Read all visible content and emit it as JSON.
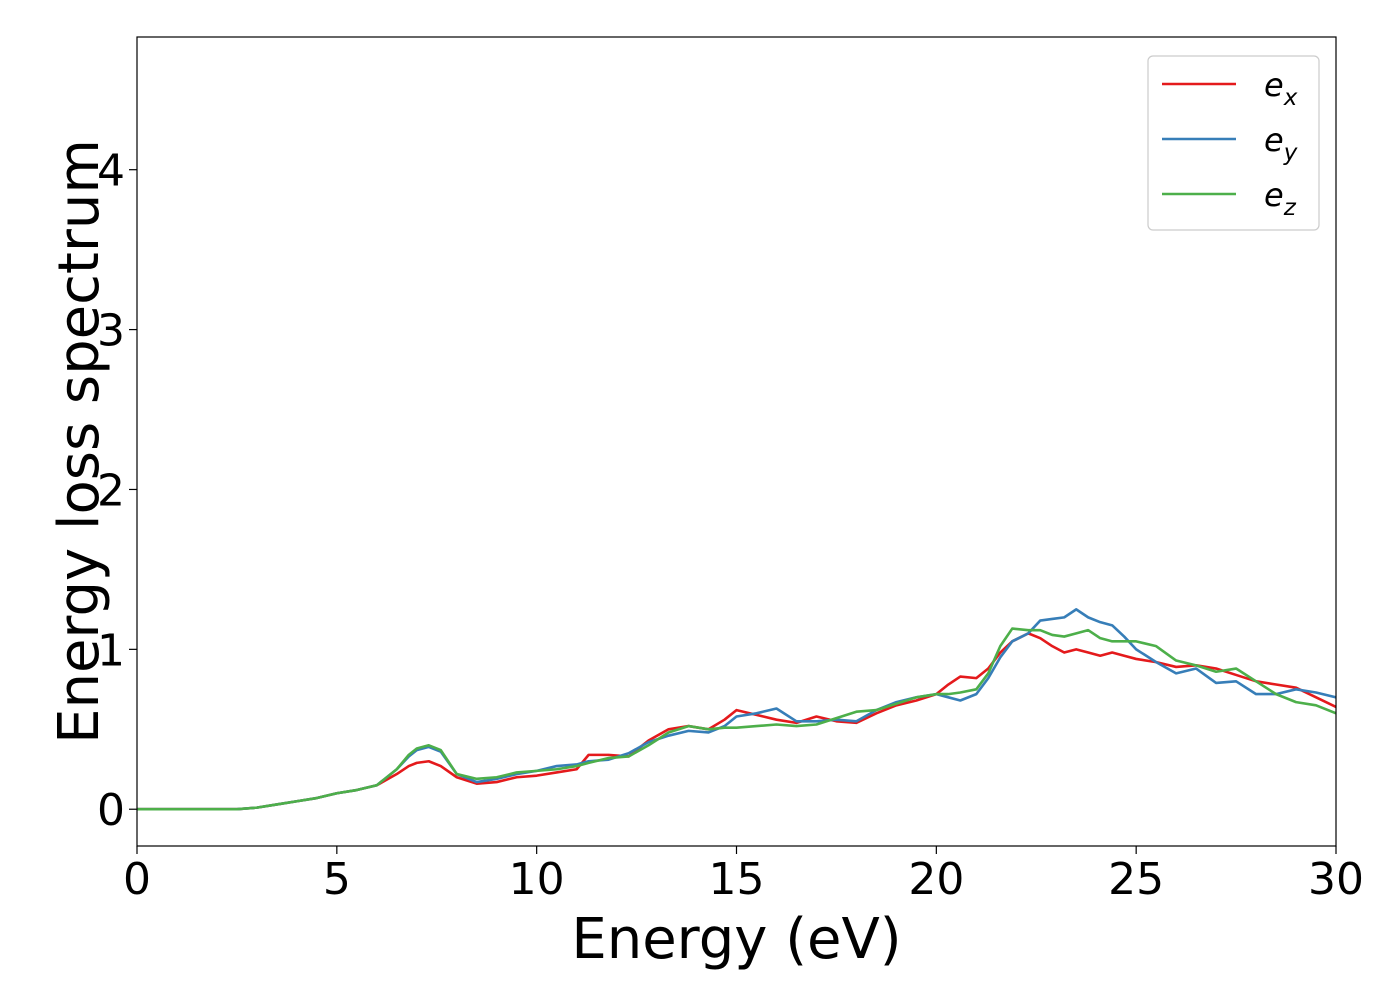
{
  "chart_data": {
    "type": "line",
    "title": "",
    "xlabel": "Energy (eV)",
    "ylabel": "Energy loss spectrum",
    "xlim": [
      0,
      30
    ],
    "ylim": [
      -0.23,
      4.83
    ],
    "xticks": [
      0,
      5,
      10,
      15,
      20,
      25,
      30
    ],
    "yticks": [
      0,
      1,
      2,
      3,
      4
    ],
    "grid": false,
    "legend_position": "top-right",
    "series": [
      {
        "name": "e_x",
        "label_base": "e",
        "label_sub": "x",
        "color": "#e41a1c",
        "x": [
          0,
          1,
          2,
          2.5,
          3,
          3.5,
          4,
          4.5,
          5,
          5.5,
          6,
          6.5,
          6.8,
          7.0,
          7.3,
          7.6,
          8.0,
          8.5,
          9.0,
          9.5,
          10.0,
          10.5,
          11.0,
          11.3,
          11.8,
          12.3,
          12.8,
          13.3,
          13.8,
          14.3,
          14.7,
          15.0,
          15.5,
          16.0,
          16.5,
          17.0,
          17.5,
          18.0,
          18.5,
          19.0,
          19.5,
          20.0,
          20.3,
          20.6,
          21.0,
          21.3,
          21.6,
          21.9,
          22.3,
          22.6,
          22.9,
          23.2,
          23.5,
          23.8,
          24.1,
          24.4,
          24.7,
          25.0,
          25.5,
          26.0,
          26.5,
          27.0,
          27.5,
          28.0,
          28.5,
          29.0,
          29.5,
          30.0
        ],
        "y": [
          0,
          0,
          0,
          0,
          0.01,
          0.03,
          0.05,
          0.07,
          0.1,
          0.12,
          0.15,
          0.22,
          0.27,
          0.29,
          0.3,
          0.27,
          0.2,
          0.16,
          0.17,
          0.2,
          0.21,
          0.23,
          0.25,
          0.34,
          0.34,
          0.33,
          0.43,
          0.5,
          0.52,
          0.5,
          0.56,
          0.62,
          0.59,
          0.56,
          0.54,
          0.58,
          0.55,
          0.54,
          0.6,
          0.65,
          0.68,
          0.72,
          0.78,
          0.83,
          0.82,
          0.88,
          0.98,
          1.05,
          1.1,
          1.07,
          1.02,
          0.98,
          1.0,
          0.98,
          0.96,
          0.98,
          0.96,
          0.94,
          0.92,
          0.89,
          0.9,
          0.88,
          0.84,
          0.8,
          0.78,
          0.76,
          0.7,
          0.64
        ]
      },
      {
        "name": "e_y",
        "label_base": "e",
        "label_sub": "y",
        "color": "#377eb8",
        "x": [
          0,
          1,
          2,
          2.5,
          3,
          3.5,
          4,
          4.5,
          5,
          5.5,
          6,
          6.5,
          6.8,
          7.0,
          7.3,
          7.6,
          8.0,
          8.5,
          9.0,
          9.5,
          10.0,
          10.5,
          11.0,
          11.3,
          11.8,
          12.3,
          12.8,
          13.3,
          13.8,
          14.3,
          14.7,
          15.0,
          15.5,
          16.0,
          16.5,
          17.0,
          17.5,
          18.0,
          18.5,
          19.0,
          19.5,
          20.0,
          20.3,
          20.6,
          21.0,
          21.3,
          21.6,
          21.9,
          22.3,
          22.6,
          22.9,
          23.2,
          23.5,
          23.8,
          24.1,
          24.4,
          24.7,
          25.0,
          25.5,
          26.0,
          26.5,
          27.0,
          27.5,
          28.0,
          28.5,
          29.0,
          29.5,
          30.0
        ],
        "y": [
          0,
          0,
          0,
          0,
          0.01,
          0.03,
          0.05,
          0.07,
          0.1,
          0.12,
          0.15,
          0.25,
          0.33,
          0.37,
          0.39,
          0.36,
          0.22,
          0.17,
          0.19,
          0.22,
          0.24,
          0.27,
          0.28,
          0.3,
          0.31,
          0.35,
          0.42,
          0.46,
          0.49,
          0.48,
          0.52,
          0.58,
          0.6,
          0.63,
          0.55,
          0.55,
          0.56,
          0.55,
          0.62,
          0.67,
          0.7,
          0.72,
          0.7,
          0.68,
          0.72,
          0.82,
          0.95,
          1.05,
          1.1,
          1.18,
          1.19,
          1.2,
          1.25,
          1.2,
          1.17,
          1.15,
          1.08,
          1.0,
          0.92,
          0.85,
          0.88,
          0.79,
          0.8,
          0.72,
          0.72,
          0.75,
          0.73,
          0.7
        ]
      },
      {
        "name": "e_z",
        "label_base": "e",
        "label_sub": "z",
        "color": "#4daf4a",
        "x": [
          0,
          1,
          2,
          2.5,
          3,
          3.5,
          4,
          4.5,
          5,
          5.5,
          6,
          6.5,
          6.8,
          7.0,
          7.3,
          7.6,
          8.0,
          8.5,
          9.0,
          9.5,
          10.0,
          10.5,
          11.0,
          11.3,
          11.8,
          12.3,
          12.8,
          13.3,
          13.8,
          14.3,
          14.7,
          15.0,
          15.5,
          16.0,
          16.5,
          17.0,
          17.5,
          18.0,
          18.5,
          19.0,
          19.5,
          20.0,
          20.3,
          20.6,
          21.0,
          21.3,
          21.6,
          21.9,
          22.3,
          22.6,
          22.9,
          23.2,
          23.5,
          23.8,
          24.1,
          24.4,
          24.7,
          25.0,
          25.5,
          26.0,
          26.5,
          27.0,
          27.5,
          28.0,
          28.5,
          29.0,
          29.5,
          30.0
        ],
        "y": [
          0,
          0,
          0,
          0,
          0.01,
          0.03,
          0.05,
          0.07,
          0.1,
          0.12,
          0.15,
          0.25,
          0.34,
          0.38,
          0.4,
          0.37,
          0.22,
          0.19,
          0.2,
          0.23,
          0.24,
          0.25,
          0.27,
          0.29,
          0.32,
          0.33,
          0.4,
          0.48,
          0.52,
          0.5,
          0.51,
          0.51,
          0.52,
          0.53,
          0.52,
          0.53,
          0.57,
          0.61,
          0.62,
          0.66,
          0.7,
          0.72,
          0.72,
          0.73,
          0.75,
          0.85,
          1.02,
          1.13,
          1.12,
          1.12,
          1.09,
          1.08,
          1.1,
          1.12,
          1.07,
          1.05,
          1.05,
          1.05,
          1.02,
          0.93,
          0.9,
          0.86,
          0.88,
          0.8,
          0.72,
          0.67,
          0.65,
          0.6
        ]
      }
    ]
  }
}
